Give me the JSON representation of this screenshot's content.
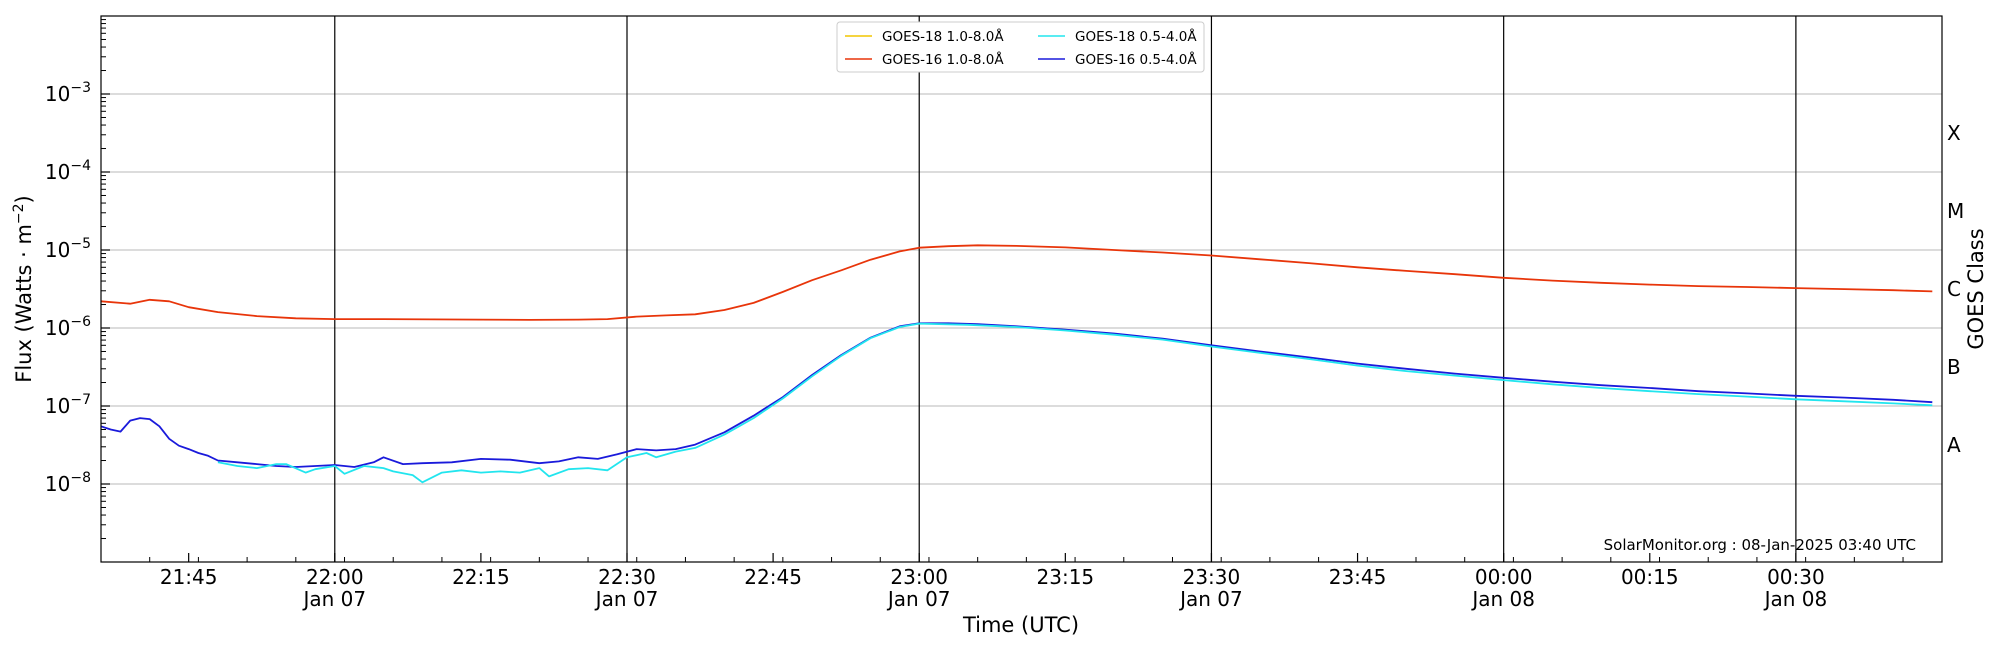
{
  "chart_data": {
    "type": "line",
    "xlabel": "Time (UTC)",
    "ylabel": "Flux (Watts · m",
    "ylabel_sup": "−2",
    "ylabel_close": ")",
    "y2label": "GOES Class",
    "yscale": "log",
    "xlim": [
      "2025-01-07T21:36",
      "2025-01-08T00:45"
    ],
    "ylim": [
      1e-09,
      0.01
    ],
    "grid": "horizontal",
    "legend_position": "top-center",
    "x_ticks": [
      {
        "t": "2025-01-07T21:45",
        "label": "21:45"
      },
      {
        "t": "2025-01-07T22:00",
        "label": "22:00",
        "sub": "Jan 07",
        "major": true
      },
      {
        "t": "2025-01-07T22:15",
        "label": "22:15"
      },
      {
        "t": "2025-01-07T22:30",
        "label": "22:30",
        "sub": "Jan 07",
        "major": true
      },
      {
        "t": "2025-01-07T22:45",
        "label": "22:45"
      },
      {
        "t": "2025-01-07T23:00",
        "label": "23:00",
        "sub": "Jan 07",
        "major": true
      },
      {
        "t": "2025-01-07T23:15",
        "label": "23:15"
      },
      {
        "t": "2025-01-07T23:30",
        "label": "23:30",
        "sub": "Jan 07",
        "major": true
      },
      {
        "t": "2025-01-07T23:45",
        "label": "23:45"
      },
      {
        "t": "2025-01-08T00:00",
        "label": "00:00",
        "sub": "Jan 08",
        "major": true
      },
      {
        "t": "2025-01-08T00:15",
        "label": "00:15"
      },
      {
        "t": "2025-01-08T00:30",
        "label": "00:30",
        "sub": "Jan 08",
        "major": true
      }
    ],
    "y_ticks": [
      {
        "value": 1e-08,
        "base": "10",
        "exp": "−8"
      },
      {
        "value": 1e-07,
        "base": "10",
        "exp": "−7"
      },
      {
        "value": 1e-06,
        "base": "10",
        "exp": "−6"
      },
      {
        "value": 1e-05,
        "base": "10",
        "exp": "−5"
      },
      {
        "value": 0.0001,
        "base": "10",
        "exp": "−4"
      },
      {
        "value": 0.001,
        "base": "10",
        "exp": "−3"
      }
    ],
    "classes": [
      {
        "label": "A",
        "value": 3.16e-08
      },
      {
        "label": "B",
        "value": 3.16e-07
      },
      {
        "label": "C",
        "value": 3.16e-06
      },
      {
        "label": "M",
        "value": 3.16e-05
      },
      {
        "label": "X",
        "value": 0.000316
      }
    ],
    "legend": [
      {
        "name": "GOES-18 1.0-8.0Å",
        "color": "#f2c500"
      },
      {
        "name": "GOES-18 0.5-4.0Å",
        "color": "#22e5ee"
      },
      {
        "name": "GOES-16 1.0-8.0Å",
        "color": "#e8350a"
      },
      {
        "name": "GOES-16 0.5-4.0Å",
        "color": "#1a1adb"
      }
    ],
    "series": [
      {
        "name": "GOES-16 1.0-8.0Å",
        "color": "#e8350a",
        "x": [
          "2025-01-07T21:36",
          "2025-01-07T21:39",
          "2025-01-07T21:41",
          "2025-01-07T21:43",
          "2025-01-07T21:45",
          "2025-01-07T21:48",
          "2025-01-07T21:52",
          "2025-01-07T21:56",
          "2025-01-07T22:00",
          "2025-01-07T22:05",
          "2025-01-07T22:10",
          "2025-01-07T22:15",
          "2025-01-07T22:20",
          "2025-01-07T22:25",
          "2025-01-07T22:28",
          "2025-01-07T22:31",
          "2025-01-07T22:34",
          "2025-01-07T22:37",
          "2025-01-07T22:40",
          "2025-01-07T22:43",
          "2025-01-07T22:46",
          "2025-01-07T22:49",
          "2025-01-07T22:52",
          "2025-01-07T22:55",
          "2025-01-07T22:58",
          "2025-01-07T23:00",
          "2025-01-07T23:03",
          "2025-01-07T23:06",
          "2025-01-07T23:10",
          "2025-01-07T23:15",
          "2025-01-07T23:20",
          "2025-01-07T23:25",
          "2025-01-07T23:30",
          "2025-01-07T23:35",
          "2025-01-07T23:40",
          "2025-01-07T23:45",
          "2025-01-07T23:50",
          "2025-01-07T23:55",
          "2025-01-08T00:00",
          "2025-01-08T00:05",
          "2025-01-08T00:10",
          "2025-01-08T00:15",
          "2025-01-08T00:20",
          "2025-01-08T00:25",
          "2025-01-08T00:30",
          "2025-01-08T00:35",
          "2025-01-08T00:40",
          "2025-01-08T00:44"
        ],
        "values": [
          2.2e-06,
          2.05e-06,
          2.3e-06,
          2.2e-06,
          1.85e-06,
          1.6e-06,
          1.42e-06,
          1.33e-06,
          1.3e-06,
          1.3e-06,
          1.29e-06,
          1.28e-06,
          1.27e-06,
          1.28e-06,
          1.3e-06,
          1.4e-06,
          1.45e-06,
          1.5e-06,
          1.7e-06,
          2.1e-06,
          2.9e-06,
          4.1e-06,
          5.5e-06,
          7.5e-06,
          9.6e-06,
          1.07e-05,
          1.12e-05,
          1.15e-05,
          1.13e-05,
          1.08e-05,
          1e-05,
          9.3e-06,
          8.5e-06,
          7.6e-06,
          6.8e-06,
          6e-06,
          5.4e-06,
          4.9e-06,
          4.4e-06,
          4.05e-06,
          3.8e-06,
          3.6e-06,
          3.45e-06,
          3.35e-06,
          3.25e-06,
          3.15e-06,
          3.05e-06,
          2.95e-06
        ]
      },
      {
        "name": "GOES-16 0.5-4.0Å",
        "color": "#1a1adb",
        "x": [
          "2025-01-07T21:36",
          "2025-01-07T21:37",
          "2025-01-07T21:38",
          "2025-01-07T21:39",
          "2025-01-07T21:40",
          "2025-01-07T21:41",
          "2025-01-07T21:42",
          "2025-01-07T21:43",
          "2025-01-07T21:44",
          "2025-01-07T21:45",
          "2025-01-07T21:46",
          "2025-01-07T21:47",
          "2025-01-07T21:48",
          "2025-01-07T21:50",
          "2025-01-07T21:52",
          "2025-01-07T21:54",
          "2025-01-07T21:56",
          "2025-01-07T21:58",
          "2025-01-07T22:00",
          "2025-01-07T22:02",
          "2025-01-07T22:04",
          "2025-01-07T22:05",
          "2025-01-07T22:07",
          "2025-01-07T22:09",
          "2025-01-07T22:12",
          "2025-01-07T22:15",
          "2025-01-07T22:18",
          "2025-01-07T22:21",
          "2025-01-07T22:23",
          "2025-01-07T22:25",
          "2025-01-07T22:27",
          "2025-01-07T22:29",
          "2025-01-07T22:31",
          "2025-01-07T22:33",
          "2025-01-07T22:35",
          "2025-01-07T22:37",
          "2025-01-07T22:40",
          "2025-01-07T22:43",
          "2025-01-07T22:46",
          "2025-01-07T22:49",
          "2025-01-07T22:52",
          "2025-01-07T22:55",
          "2025-01-07T22:58",
          "2025-01-07T23:00",
          "2025-01-07T23:03",
          "2025-01-07T23:06",
          "2025-01-07T23:10",
          "2025-01-07T23:15",
          "2025-01-07T23:20",
          "2025-01-07T23:25",
          "2025-01-07T23:30",
          "2025-01-07T23:35",
          "2025-01-07T23:40",
          "2025-01-07T23:45",
          "2025-01-07T23:50",
          "2025-01-07T23:55",
          "2025-01-08T00:00",
          "2025-01-08T00:05",
          "2025-01-08T00:10",
          "2025-01-08T00:15",
          "2025-01-08T00:20",
          "2025-01-08T00:25",
          "2025-01-08T00:30",
          "2025-01-08T00:35",
          "2025-01-08T00:40",
          "2025-01-08T00:44"
        ],
        "values": [
          5.5e-08,
          5e-08,
          4.7e-08,
          6.5e-08,
          7e-08,
          6.8e-08,
          5.5e-08,
          3.8e-08,
          3.1e-08,
          2.8e-08,
          2.5e-08,
          2.3e-08,
          2e-08,
          1.9e-08,
          1.8e-08,
          1.7e-08,
          1.65e-08,
          1.7e-08,
          1.75e-08,
          1.65e-08,
          1.9e-08,
          2.2e-08,
          1.8e-08,
          1.85e-08,
          1.9e-08,
          2.1e-08,
          2.05e-08,
          1.85e-08,
          1.95e-08,
          2.2e-08,
          2.1e-08,
          2.4e-08,
          2.8e-08,
          2.7e-08,
          2.8e-08,
          3.2e-08,
          4.6e-08,
          7.5e-08,
          1.3e-07,
          2.5e-07,
          4.5e-07,
          7.5e-07,
          1.05e-06,
          1.15e-06,
          1.15e-06,
          1.12e-06,
          1.05e-06,
          9.5e-07,
          8.5e-07,
          7.3e-07,
          6e-07,
          5e-07,
          4.2e-07,
          3.5e-07,
          3e-07,
          2.6e-07,
          2.3e-07,
          2.05e-07,
          1.85e-07,
          1.7e-07,
          1.55e-07,
          1.45e-07,
          1.35e-07,
          1.28e-07,
          1.2e-07,
          1.12e-07
        ]
      },
      {
        "name": "GOES-18 0.5-4.0Å",
        "color": "#22e5ee",
        "x": [
          "2025-01-07T21:48",
          "2025-01-07T21:50",
          "2025-01-07T21:52",
          "2025-01-07T21:54",
          "2025-01-07T21:55",
          "2025-01-07T21:57",
          "2025-01-07T21:58",
          "2025-01-07T22:00",
          "2025-01-07T22:01",
          "2025-01-07T22:03",
          "2025-01-07T22:05",
          "2025-01-07T22:06",
          "2025-01-07T22:08",
          "2025-01-07T22:09",
          "2025-01-07T22:11",
          "2025-01-07T22:13",
          "2025-01-07T22:15",
          "2025-01-07T22:17",
          "2025-01-07T22:19",
          "2025-01-07T22:21",
          "2025-01-07T22:22",
          "2025-01-07T22:24",
          "2025-01-07T22:26",
          "2025-01-07T22:28",
          "2025-01-07T22:30",
          "2025-01-07T22:32",
          "2025-01-07T22:33",
          "2025-01-07T22:35",
          "2025-01-07T22:37",
          "2025-01-07T22:40",
          "2025-01-07T22:43",
          "2025-01-07T22:46",
          "2025-01-07T22:49",
          "2025-01-07T22:52",
          "2025-01-07T22:55",
          "2025-01-07T22:58",
          "2025-01-07T23:00",
          "2025-01-07T23:05",
          "2025-01-07T23:10",
          "2025-01-07T23:15",
          "2025-01-07T23:20",
          "2025-01-07T23:25",
          "2025-01-07T23:30",
          "2025-01-07T23:35",
          "2025-01-07T23:40",
          "2025-01-07T23:45",
          "2025-01-07T23:50",
          "2025-01-07T23:55",
          "2025-01-08T00:00",
          "2025-01-08T00:05",
          "2025-01-08T00:10",
          "2025-01-08T00:15",
          "2025-01-08T00:20",
          "2025-01-08T00:25",
          "2025-01-08T00:30",
          "2025-01-08T00:35",
          "2025-01-08T00:40",
          "2025-01-08T00:44"
        ],
        "values": [
          1.9e-08,
          1.7e-08,
          1.6e-08,
          1.8e-08,
          1.8e-08,
          1.4e-08,
          1.55e-08,
          1.7e-08,
          1.35e-08,
          1.7e-08,
          1.6e-08,
          1.45e-08,
          1.3e-08,
          1.05e-08,
          1.4e-08,
          1.5e-08,
          1.4e-08,
          1.45e-08,
          1.4e-08,
          1.6e-08,
          1.25e-08,
          1.55e-08,
          1.6e-08,
          1.5e-08,
          2.2e-08,
          2.5e-08,
          2.2e-08,
          2.6e-08,
          2.9e-08,
          4.3e-08,
          7e-08,
          1.25e-07,
          2.4e-07,
          4.4e-07,
          7.4e-07,
          1.03e-06,
          1.14e-06,
          1.1e-06,
          1.03e-06,
          9.3e-07,
          8.2e-07,
          7.1e-07,
          5.8e-07,
          4.8e-07,
          4e-07,
          3.3e-07,
          2.8e-07,
          2.45e-07,
          2.15e-07,
          1.9e-07,
          1.7e-07,
          1.55e-07,
          1.42e-07,
          1.32e-07,
          1.22e-07,
          1.15e-07,
          1.08e-07,
          1.02e-07
        ]
      }
    ],
    "annotation": "SolarMonitor.org : 08-Jan-2025 03:40 UTC"
  }
}
